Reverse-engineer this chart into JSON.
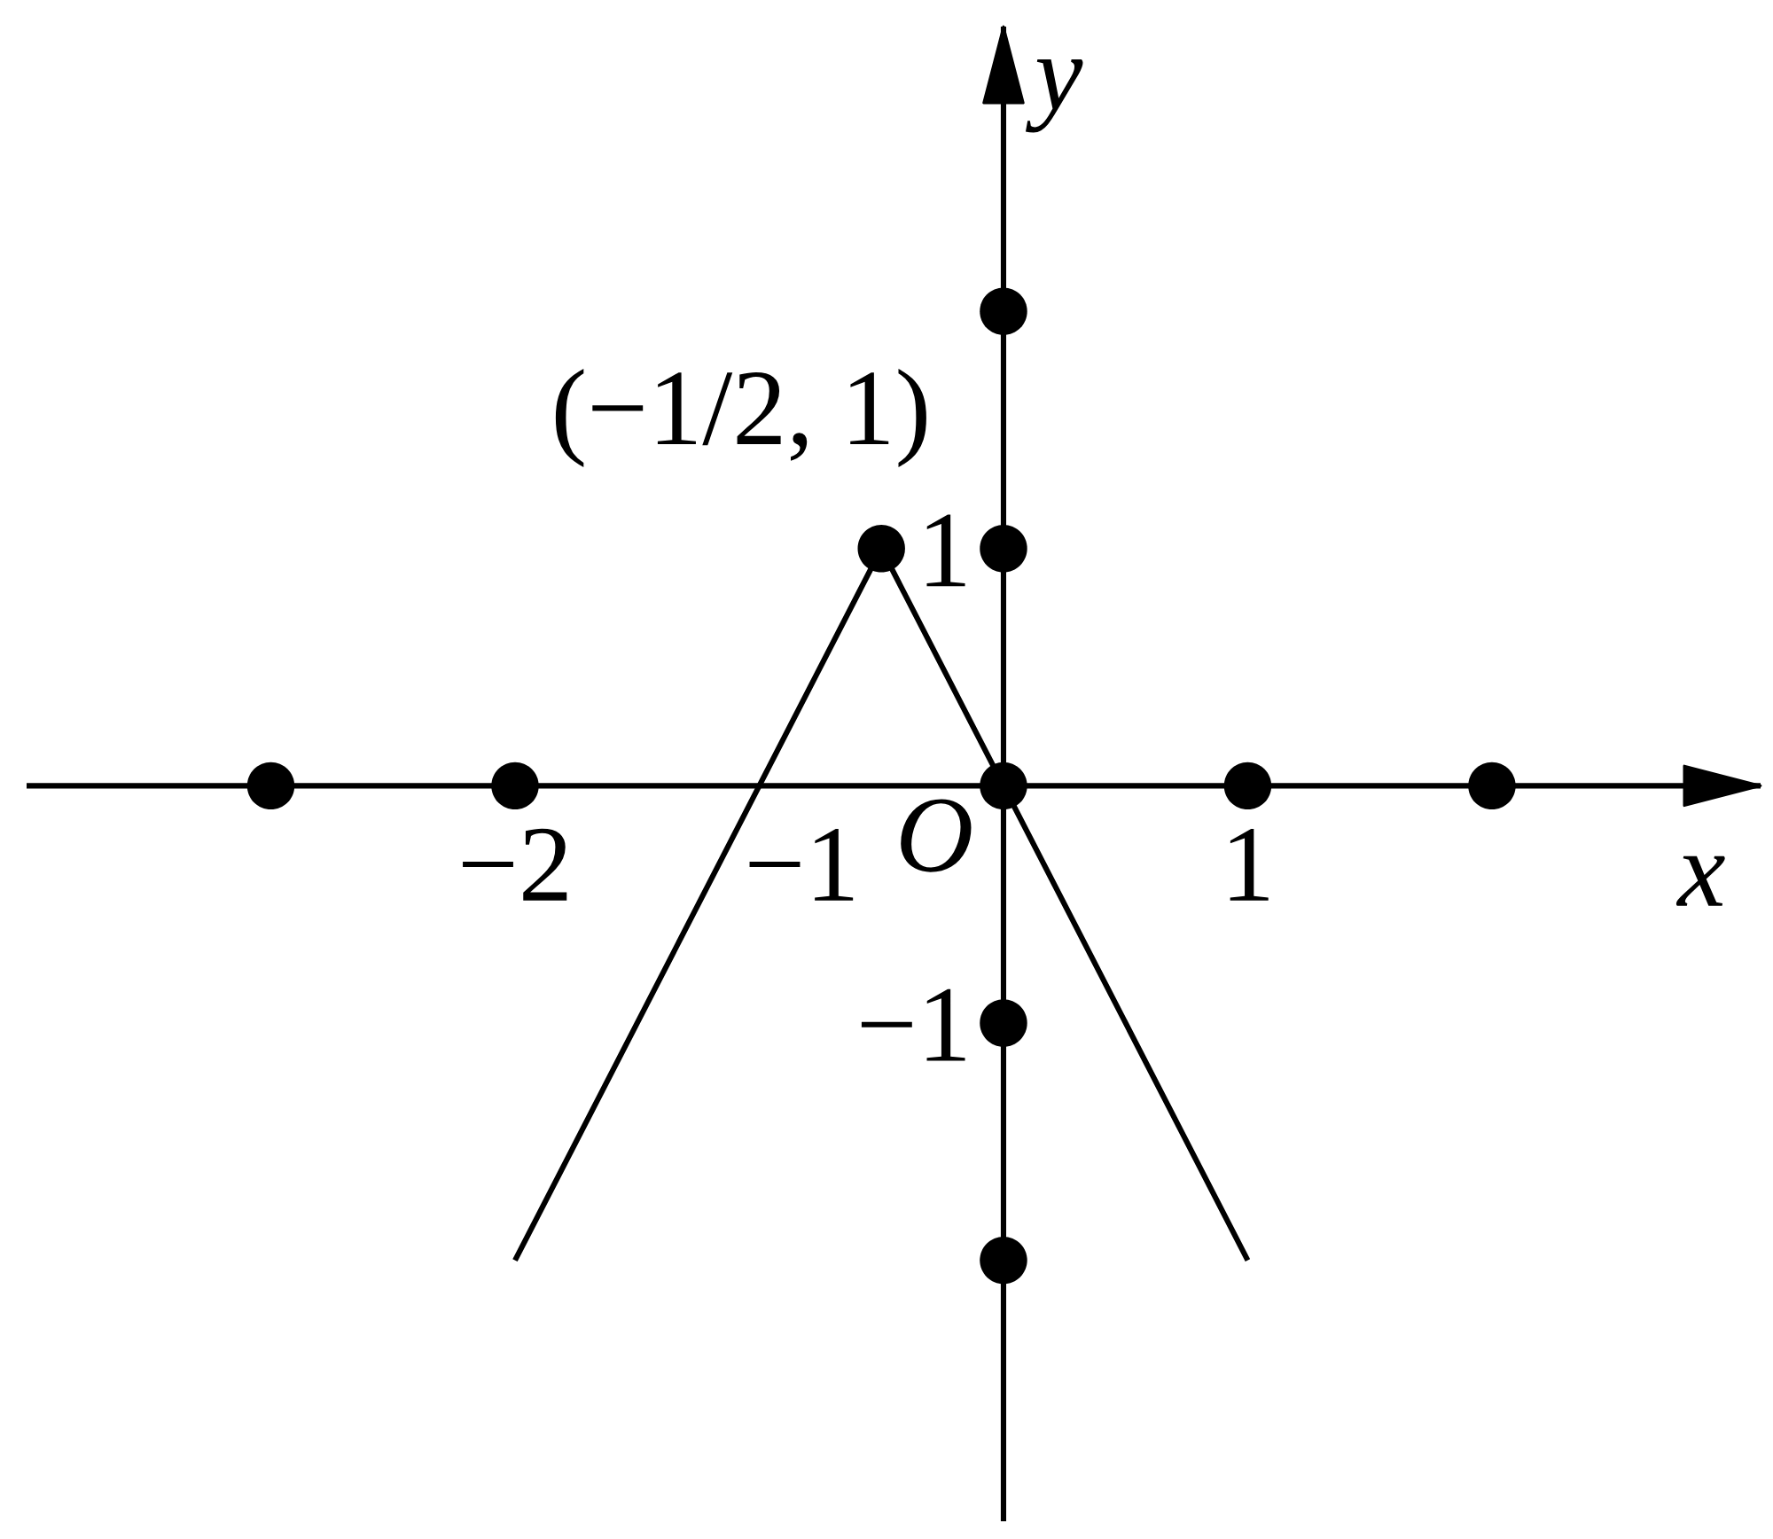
{
  "chart_data": {
    "type": "line",
    "xlabel": "x",
    "ylabel": "y",
    "xlim": [
      -4.0,
      3.1
    ],
    "ylim": [
      -3.1,
      3.2
    ],
    "xticks": [
      {
        "value": -2,
        "label": "−2"
      },
      {
        "value": -1,
        "label": "−1"
      },
      1
    ],
    "yticks": [
      1,
      {
        "value": -1,
        "label": "−1"
      }
    ],
    "grid": false,
    "series": [
      {
        "color": "#000000",
        "x": [
          -2,
          -0.5,
          1
        ],
        "values": [
          -2,
          1,
          -2
        ],
        "line_style": "solid"
      },
      {
        "type": "scatter",
        "color": "#000000",
        "x": [
          -3,
          -2,
          0,
          1,
          2,
          0,
          0,
          0,
          0,
          -0.5
        ],
        "values": [
          0,
          0,
          0,
          0,
          0,
          2,
          1,
          -1,
          -2,
          1
        ],
        "marker": "circle"
      }
    ],
    "annotations": [
      {
        "text": "(−1/2, 1)",
        "x": -0.5,
        "y": 1
      },
      {
        "text": "O",
        "x": 0,
        "y": 0
      }
    ]
  }
}
